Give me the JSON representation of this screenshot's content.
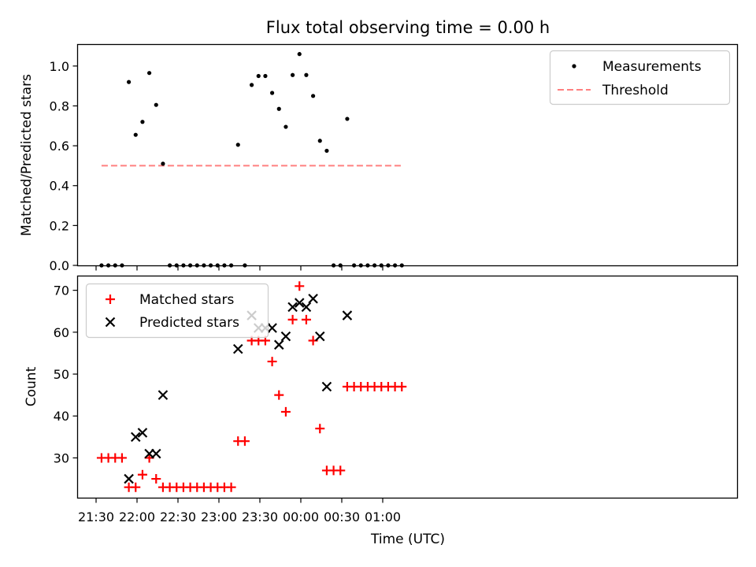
{
  "title": "Flux total observing time = 0.00 h",
  "chart_data": [
    {
      "type": "scatter",
      "ylabel": "Matched/Predicted stars",
      "xlabel": "",
      "ylim": [
        0,
        1.11
      ],
      "yticks": [
        "0.0",
        "0.2",
        "0.4",
        "0.6",
        "0.8",
        "1.0"
      ],
      "legend": {
        "position": "top-right"
      },
      "series": [
        {
          "name": "Measurements",
          "color": "#000000",
          "marker": "dot",
          "x": [
            "21:34",
            "21:39",
            "21:44",
            "21:49",
            "21:54",
            "21:59",
            "22:04",
            "22:09",
            "22:14",
            "22:19",
            "22:24",
            "22:29",
            "22:34",
            "22:39",
            "22:44",
            "22:49",
            "22:54",
            "22:59",
            "23:04",
            "23:09",
            "23:14",
            "23:19",
            "23:24",
            "23:29",
            "23:34",
            "23:39",
            "23:44",
            "23:49",
            "23:54",
            "23:59",
            "00:04",
            "00:09",
            "00:14",
            "00:19",
            "00:24",
            "00:29",
            "00:34",
            "00:39",
            "00:44",
            "00:49",
            "00:54",
            "00:59",
            "01:04",
            "01:09",
            "01:14"
          ],
          "y": [
            0,
            0,
            0,
            0,
            0.92,
            0.655,
            0.72,
            0.965,
            0.805,
            0.51,
            0,
            0,
            0,
            0,
            0,
            0,
            0,
            0,
            0,
            0,
            0.605,
            0,
            0.905,
            0.95,
            0.95,
            0.865,
            0.785,
            0.695,
            0.955,
            1.06,
            0.955,
            0.85,
            0.625,
            0.575,
            0,
            0,
            0.735,
            0,
            0,
            0,
            0,
            0,
            0,
            0,
            0
          ]
        },
        {
          "name": "Threshold",
          "color": "#ff8080",
          "style": "dashed",
          "x": [
            "21:34",
            "01:14"
          ],
          "y": [
            0.5,
            0.5
          ]
        }
      ]
    },
    {
      "type": "scatter",
      "xlabel": "Time (UTC)",
      "ylabel": "Count",
      "ylim": [
        20.5,
        73.5
      ],
      "yticks": [
        "30",
        "40",
        "50",
        "60",
        "70"
      ],
      "xticks": [
        "21:30",
        "22:00",
        "22:30",
        "23:00",
        "23:30",
        "00:00",
        "00:30",
        "01:00"
      ],
      "legend": {
        "position": "top-left"
      },
      "series": [
        {
          "name": "Matched stars",
          "color": "#ff0000",
          "marker": "plus",
          "x": [
            "21:34",
            "21:39",
            "21:44",
            "21:49",
            "21:54",
            "21:59",
            "22:04",
            "22:09",
            "22:14",
            "22:19",
            "22:24",
            "22:29",
            "22:34",
            "22:39",
            "22:44",
            "22:49",
            "22:54",
            "22:59",
            "23:04",
            "23:09",
            "23:14",
            "23:19",
            "23:24",
            "23:29",
            "23:34",
            "23:39",
            "23:44",
            "23:49",
            "23:54",
            "23:59",
            "00:04",
            "00:09",
            "00:14",
            "00:19",
            "00:24",
            "00:29",
            "00:34",
            "00:39",
            "00:44",
            "00:49",
            "00:54",
            "00:59",
            "01:04",
            "01:09",
            "01:14"
          ],
          "y": [
            30,
            30,
            30,
            30,
            23,
            23,
            26,
            30,
            25,
            23,
            23,
            23,
            23,
            23,
            23,
            23,
            23,
            23,
            23,
            23,
            34,
            34,
            58,
            58,
            58,
            53,
            45,
            41,
            63,
            71,
            63,
            58,
            37,
            27,
            27,
            27,
            47,
            47,
            47,
            47,
            47,
            47,
            47,
            47,
            47
          ]
        },
        {
          "name": "Predicted stars",
          "color": "#000000",
          "marker": "x",
          "x": [
            "21:54",
            "21:59",
            "22:04",
            "22:09",
            "22:14",
            "22:19",
            "23:14",
            "23:24",
            "23:29",
            "23:34",
            "23:39",
            "23:44",
            "23:49",
            "23:54",
            "23:59",
            "00:04",
            "00:09",
            "00:14",
            "00:19",
            "00:34"
          ],
          "y": [
            25,
            35,
            36,
            31,
            31,
            45,
            56,
            64,
            61,
            61,
            61,
            57,
            59,
            66,
            67,
            66,
            68,
            59,
            47,
            64
          ]
        }
      ]
    }
  ]
}
